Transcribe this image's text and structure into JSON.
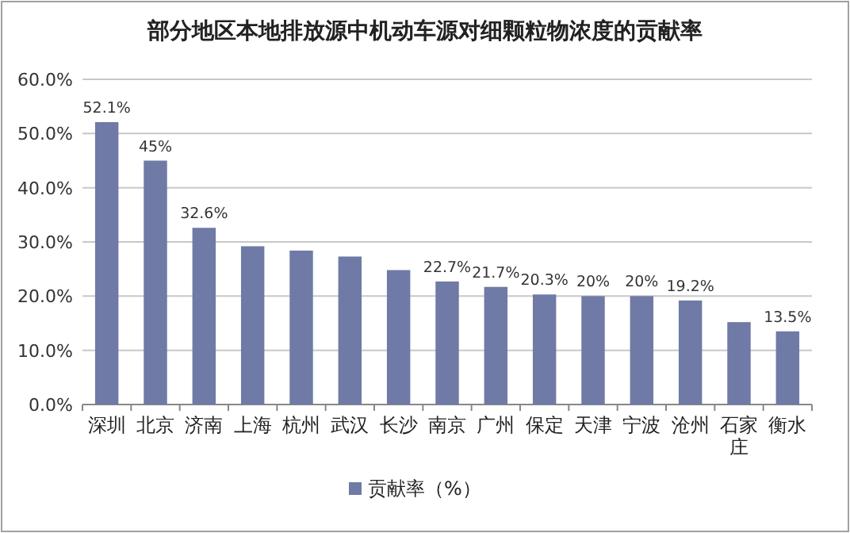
{
  "chart_data": {
    "type": "bar",
    "title": "部分地区本地排放源中机动车源对细颗粒物浓度的贡献率",
    "categories": [
      "深圳",
      "北京",
      "济南",
      "上海",
      "杭州",
      "武汉",
      "长沙",
      "南京",
      "广州",
      "保定",
      "天津",
      "宁波",
      "沧州",
      "石家庄",
      "衡水"
    ],
    "series": [
      {
        "name": "贡献率（%）",
        "color": "#6f7aa6",
        "values": [
          52.1,
          45,
          32.6,
          29.2,
          28.4,
          27.3,
          24.8,
          22.7,
          21.7,
          20.3,
          20,
          20,
          19.2,
          15.2,
          13.5
        ],
        "value_labels": [
          "52.1%",
          "45%",
          "32.6%",
          null,
          null,
          null,
          null,
          "22.7%",
          "21.7%",
          "20.3%",
          "20%",
          "20%",
          "19.2%",
          null,
          "13.5%"
        ]
      }
    ],
    "ylim": [
      0,
      60
    ],
    "yticks": [
      {
        "value": 0,
        "label": "0.0%"
      },
      {
        "value": 10,
        "label": "10.0%"
      },
      {
        "value": 20,
        "label": "20.0%"
      },
      {
        "value": 30,
        "label": "30.0%"
      },
      {
        "value": 40,
        "label": "40.0%"
      },
      {
        "value": 50,
        "label": "50.0%"
      },
      {
        "value": 60,
        "label": "60.0%"
      }
    ],
    "grid": "y",
    "legend": "bottom"
  }
}
